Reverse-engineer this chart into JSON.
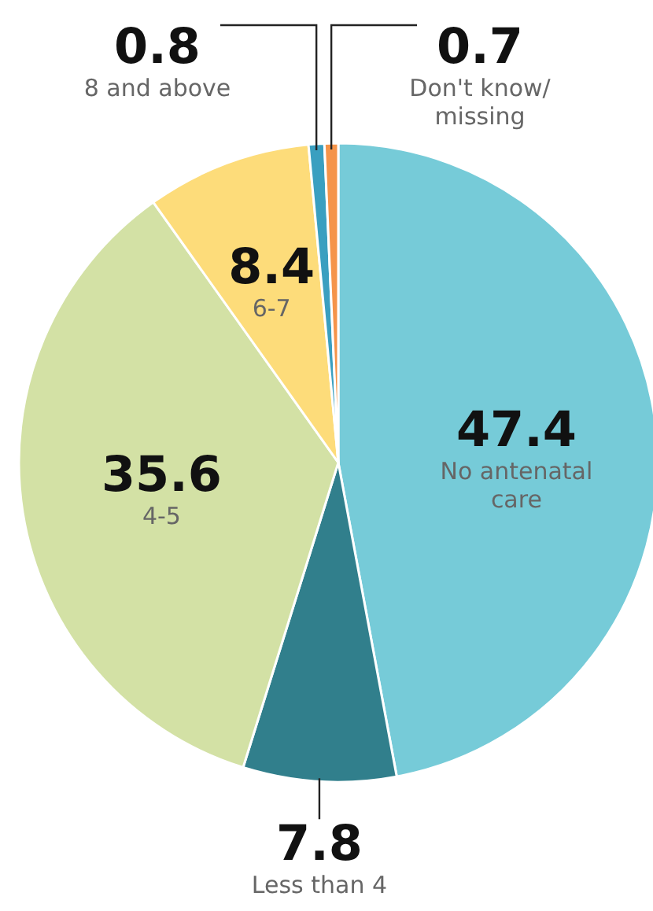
{
  "chart_data": {
    "type": "pie",
    "categories": [
      "No antenatal care",
      "Less than 4",
      "4-5",
      "6-7",
      "8 and above",
      "Don't know/missing"
    ],
    "values": [
      47.4,
      7.8,
      35.6,
      8.4,
      0.8,
      0.7
    ],
    "colors": [
      "#76cbd8",
      "#317f8c",
      "#d3e1a5",
      "#fddc7a",
      "#3a9fc0",
      "#f5944a"
    ],
    "data_labels": true
  }
}
